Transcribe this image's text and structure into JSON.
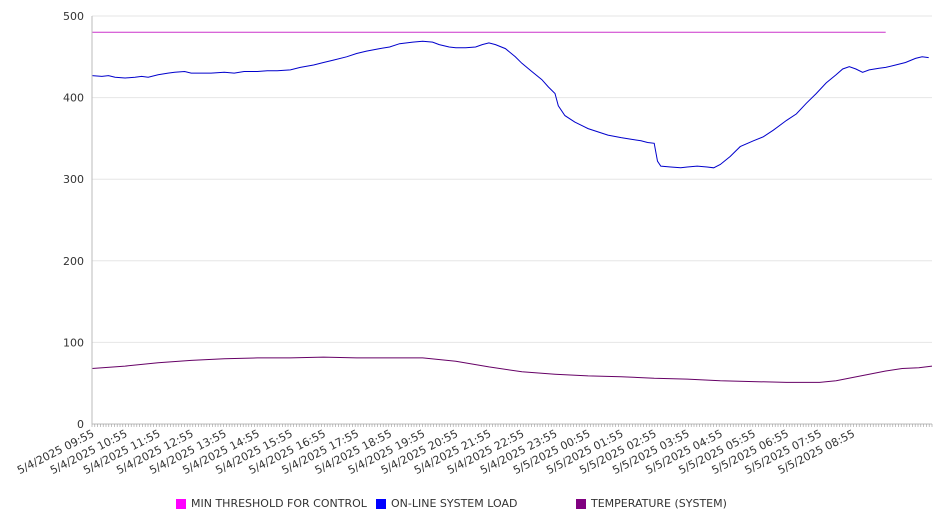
{
  "chart_data": {
    "type": "line",
    "x_tick_labels": [
      "5/4/2025 09:55",
      "5/4/2025 10:55",
      "5/4/2025 11:55",
      "5/4/2025 12:55",
      "5/4/2025 13:55",
      "5/4/2025 14:55",
      "5/4/2025 15:55",
      "5/4/2025 16:55",
      "5/4/2025 17:55",
      "5/4/2025 18:55",
      "5/4/2025 19:55",
      "5/4/2025 20:55",
      "5/4/2025 21:55",
      "5/4/2025 22:55",
      "5/4/2025 23:55",
      "5/5/2025 00:55",
      "5/5/2025 01:55",
      "5/5/2025 02:55",
      "5/5/2025 03:55",
      "5/5/2025 04:55",
      "5/5/2025 05:55",
      "5/5/2025 06:55",
      "5/5/2025 07:55",
      "5/5/2025 08:55"
    ],
    "y_ticks": [
      0,
      100,
      200,
      300,
      400,
      500
    ],
    "ylim": [
      0,
      500
    ],
    "grid": "horizontal",
    "legend_position": "bottom",
    "series": [
      {
        "name": "MIN THRESHOLD FOR CONTROL",
        "color": "#cc33cc",
        "legend_color": "#ff00ff",
        "points": [
          [
            0,
            480
          ],
          [
            24,
            480
          ]
        ]
      },
      {
        "name": "ON-LINE SYSTEM LOAD",
        "color": "#0000cc",
        "legend_color": "#0000ff",
        "points": [
          [
            0,
            427
          ],
          [
            0.3,
            426
          ],
          [
            0.5,
            427
          ],
          [
            0.7,
            425
          ],
          [
            1,
            424
          ],
          [
            1.3,
            425
          ],
          [
            1.5,
            426
          ],
          [
            1.7,
            425
          ],
          [
            2,
            428
          ],
          [
            2.3,
            430
          ],
          [
            2.5,
            431
          ],
          [
            2.8,
            432
          ],
          [
            3,
            430
          ],
          [
            3.3,
            430
          ],
          [
            3.6,
            430
          ],
          [
            4,
            431
          ],
          [
            4.3,
            430
          ],
          [
            4.6,
            432
          ],
          [
            5,
            432
          ],
          [
            5.3,
            433
          ],
          [
            5.6,
            433
          ],
          [
            6,
            434
          ],
          [
            6.3,
            437
          ],
          [
            6.7,
            440
          ],
          [
            7,
            443
          ],
          [
            7.3,
            446
          ],
          [
            7.7,
            450
          ],
          [
            8,
            454
          ],
          [
            8.3,
            457
          ],
          [
            8.7,
            460
          ],
          [
            9,
            462
          ],
          [
            9.3,
            466
          ],
          [
            9.7,
            468
          ],
          [
            10,
            469
          ],
          [
            10.3,
            468
          ],
          [
            10.5,
            465
          ],
          [
            10.8,
            462
          ],
          [
            11,
            461
          ],
          [
            11.3,
            461
          ],
          [
            11.6,
            462
          ],
          [
            11.8,
            465
          ],
          [
            12,
            467
          ],
          [
            12.2,
            465
          ],
          [
            12.5,
            460
          ],
          [
            12.8,
            450
          ],
          [
            13,
            442
          ],
          [
            13.3,
            432
          ],
          [
            13.6,
            422
          ],
          [
            13.8,
            413
          ],
          [
            14,
            405
          ],
          [
            14.1,
            390
          ],
          [
            14.3,
            378
          ],
          [
            14.6,
            370
          ],
          [
            15,
            362
          ],
          [
            15.3,
            358
          ],
          [
            15.6,
            354
          ],
          [
            16,
            351
          ],
          [
            16.3,
            349
          ],
          [
            16.6,
            347
          ],
          [
            16.8,
            345
          ],
          [
            17,
            344
          ],
          [
            17.1,
            322
          ],
          [
            17.2,
            316
          ],
          [
            17.5,
            315
          ],
          [
            17.8,
            314
          ],
          [
            18,
            315
          ],
          [
            18.3,
            316
          ],
          [
            18.6,
            315
          ],
          [
            18.8,
            314
          ],
          [
            19,
            318
          ],
          [
            19.3,
            328
          ],
          [
            19.6,
            340
          ],
          [
            20,
            347
          ],
          [
            20.3,
            352
          ],
          [
            20.6,
            360
          ],
          [
            21,
            372
          ],
          [
            21.3,
            380
          ],
          [
            21.6,
            393
          ],
          [
            21.9,
            405
          ],
          [
            22.2,
            418
          ],
          [
            22.5,
            428
          ],
          [
            22.7,
            435
          ],
          [
            22.9,
            438
          ],
          [
            23.1,
            435
          ],
          [
            23.3,
            431
          ],
          [
            23.5,
            434
          ],
          [
            23.8,
            436
          ],
          [
            24,
            437
          ],
          [
            24.3,
            440
          ],
          [
            24.6,
            443
          ],
          [
            24.9,
            448
          ],
          [
            25.1,
            450
          ],
          [
            25.3,
            449
          ]
        ]
      },
      {
        "name": "TEMPERATURE (SYSTEM)",
        "color": "#660066",
        "legend_color": "#800080",
        "points": [
          [
            0,
            68
          ],
          [
            1,
            71
          ],
          [
            2,
            75
          ],
          [
            3,
            78
          ],
          [
            4,
            80
          ],
          [
            5,
            81
          ],
          [
            6,
            81
          ],
          [
            7,
            82
          ],
          [
            8,
            81
          ],
          [
            9,
            81
          ],
          [
            10,
            81
          ],
          [
            11,
            77
          ],
          [
            12,
            70
          ],
          [
            13,
            64
          ],
          [
            14,
            61
          ],
          [
            15,
            59
          ],
          [
            16,
            58
          ],
          [
            17,
            56
          ],
          [
            18,
            55
          ],
          [
            19,
            53
          ],
          [
            20,
            52
          ],
          [
            21,
            51
          ],
          [
            22,
            51
          ],
          [
            22.5,
            53
          ],
          [
            23,
            57
          ],
          [
            23.5,
            61
          ],
          [
            24,
            65
          ],
          [
            24.5,
            68
          ],
          [
            25,
            69
          ],
          [
            25.4,
            71
          ]
        ]
      }
    ]
  }
}
